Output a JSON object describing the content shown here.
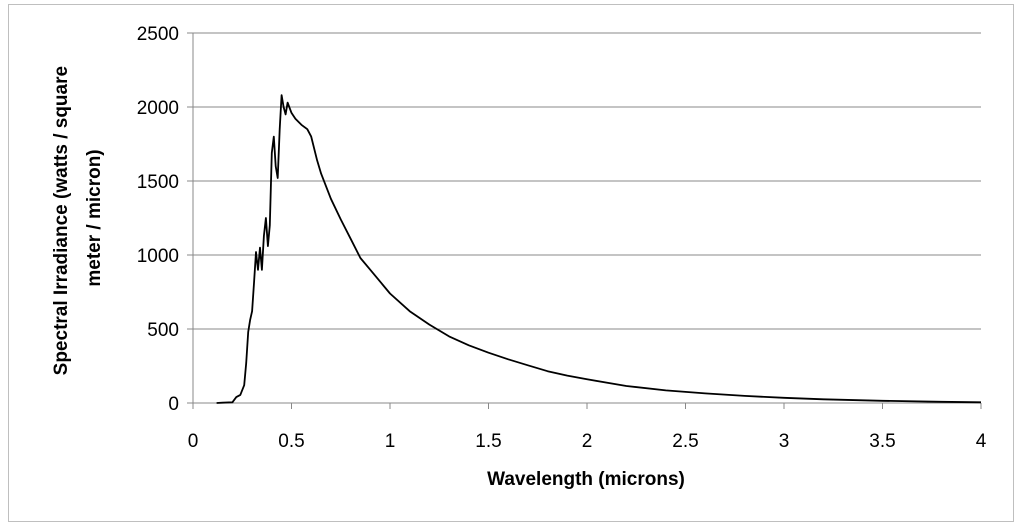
{
  "chart_data": {
    "type": "line",
    "title": "",
    "xlabel": "Wavelength (microns)",
    "ylabel_lines": [
      "Spectral Irradiance (watts / square",
      "meter / micron)"
    ],
    "xlim": [
      0,
      4
    ],
    "ylim": [
      0,
      2500
    ],
    "x_ticks": [
      0,
      0.5,
      1,
      1.5,
      2,
      2.5,
      3,
      3.5,
      4
    ],
    "x_tick_labels": [
      "0",
      "0.5",
      "1",
      "1.5",
      "2",
      "2.5",
      "3",
      "3.5",
      "4"
    ],
    "y_ticks": [
      0,
      500,
      1000,
      1500,
      2000,
      2500
    ],
    "y_tick_labels": [
      "0",
      "500",
      "1000",
      "1500",
      "2000",
      "2500"
    ],
    "grid": "horizontal",
    "series": [
      {
        "color": "#000000",
        "x": [
          0.12,
          0.15,
          0.2,
          0.22,
          0.24,
          0.26,
          0.27,
          0.28,
          0.29,
          0.3,
          0.31,
          0.32,
          0.33,
          0.34,
          0.35,
          0.36,
          0.37,
          0.38,
          0.39,
          0.4,
          0.41,
          0.42,
          0.43,
          0.44,
          0.45,
          0.46,
          0.47,
          0.48,
          0.5,
          0.52,
          0.55,
          0.58,
          0.6,
          0.63,
          0.65,
          0.7,
          0.75,
          0.8,
          0.85,
          0.9,
          0.95,
          1.0,
          1.1,
          1.2,
          1.3,
          1.4,
          1.5,
          1.6,
          1.7,
          1.8,
          1.9,
          2.0,
          2.2,
          2.4,
          2.6,
          2.8,
          3.0,
          3.2,
          3.5,
          3.8,
          4.0
        ],
        "y": [
          0,
          2,
          5,
          40,
          55,
          120,
          270,
          480,
          560,
          620,
          820,
          1020,
          900,
          1050,
          900,
          1130,
          1250,
          1060,
          1200,
          1690,
          1800,
          1600,
          1520,
          1850,
          2080,
          2000,
          1950,
          2030,
          1960,
          1920,
          1880,
          1850,
          1800,
          1640,
          1550,
          1380,
          1240,
          1110,
          980,
          900,
          820,
          740,
          620,
          530,
          450,
          390,
          340,
          295,
          255,
          215,
          185,
          160,
          115,
          85,
          65,
          48,
          35,
          25,
          15,
          8,
          5
        ]
      }
    ]
  }
}
